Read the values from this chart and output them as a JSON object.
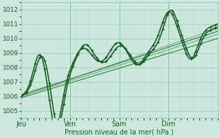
{
  "xlabel": "Pression niveau de la mer( hPa )",
  "ylim": [
    1004.5,
    1012.5
  ],
  "yticks": [
    1005,
    1006,
    1007,
    1008,
    1009,
    1010,
    1011,
    1012
  ],
  "day_labels": [
    "Jeu",
    "Ven",
    "Sam",
    "Dim"
  ],
  "day_positions": [
    0,
    24,
    48,
    72
  ],
  "total_hours": 96,
  "bg_color": "#cce8dc",
  "grid_color_major": "#99ccb8",
  "grid_color_minor": "#b8ddd0",
  "line_dark": "#1a5c28",
  "line_mid": "#2e7d42",
  "line_light": "#6aaa78"
}
